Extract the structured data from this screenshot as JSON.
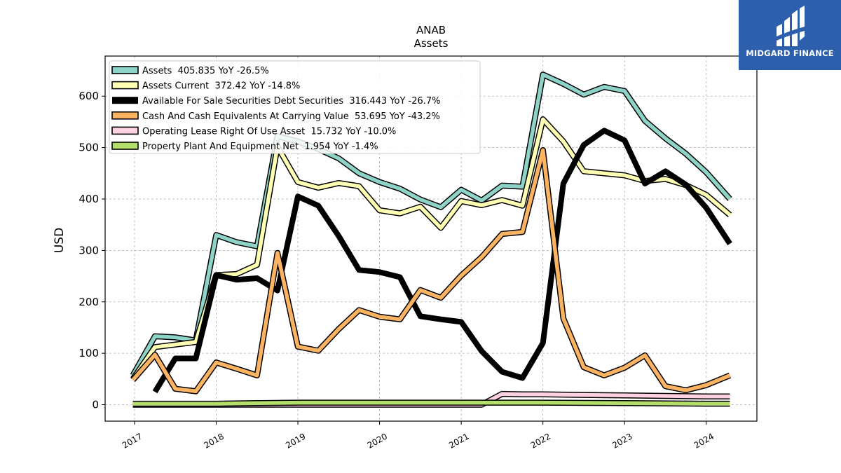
{
  "logo": {
    "text": "MIDGARD FINANCE"
  },
  "chart_data": {
    "type": "line",
    "title": "ANAB",
    "subtitle": "Assets",
    "ylabel": "USD",
    "xlabel": "",
    "ylim": [
      -32,
      678
    ],
    "xlim": [
      2016.64,
      2024.62
    ],
    "yticks": [
      0,
      100,
      200,
      300,
      400,
      500,
      600
    ],
    "xticks": [
      2017,
      2018,
      2019,
      2020,
      2021,
      2022,
      2023,
      2024
    ],
    "grid": true,
    "legend_position": "top-left",
    "series": [
      {
        "name": "Assets  405.835 YoY -26.5%",
        "color": "#8dd3c7",
        "style": "band",
        "values": [
          [
            2016.98,
            57
          ],
          [
            2017.25,
            133
          ],
          [
            2017.5,
            131
          ],
          [
            2017.75,
            125
          ],
          [
            2018.0,
            330
          ],
          [
            2018.25,
            316
          ],
          [
            2018.5,
            308
          ],
          [
            2018.75,
            522
          ],
          [
            2019.0,
            512
          ],
          [
            2019.25,
            497
          ],
          [
            2019.5,
            479
          ],
          [
            2019.75,
            450
          ],
          [
            2020.0,
            433
          ],
          [
            2020.25,
            420
          ],
          [
            2020.5,
            399
          ],
          [
            2020.75,
            384
          ],
          [
            2021.0,
            418
          ],
          [
            2021.25,
            397
          ],
          [
            2021.5,
            426
          ],
          [
            2021.75,
            424
          ],
          [
            2022.0,
            642
          ],
          [
            2022.25,
            624
          ],
          [
            2022.5,
            603
          ],
          [
            2022.75,
            618
          ],
          [
            2023.0,
            610
          ],
          [
            2023.25,
            552
          ],
          [
            2023.5,
            518
          ],
          [
            2023.75,
            488
          ],
          [
            2024.0,
            452
          ],
          [
            2024.29,
            400
          ]
        ]
      },
      {
        "name": "Assets Current  372.42 YoY -14.8%",
        "color": "#ffffb3",
        "style": "band",
        "values": [
          [
            2016.98,
            50
          ],
          [
            2017.25,
            112
          ],
          [
            2017.5,
            117
          ],
          [
            2017.75,
            122
          ],
          [
            2018.0,
            252
          ],
          [
            2018.25,
            254
          ],
          [
            2018.5,
            272
          ],
          [
            2018.75,
            502
          ],
          [
            2019.0,
            433
          ],
          [
            2019.25,
            422
          ],
          [
            2019.5,
            431
          ],
          [
            2019.75,
            425
          ],
          [
            2020.0,
            378
          ],
          [
            2020.25,
            372
          ],
          [
            2020.5,
            385
          ],
          [
            2020.75,
            344
          ],
          [
            2021.0,
            396
          ],
          [
            2021.25,
            388
          ],
          [
            2021.5,
            398
          ],
          [
            2021.75,
            387
          ],
          [
            2022.0,
            555
          ],
          [
            2022.25,
            512
          ],
          [
            2022.5,
            454
          ],
          [
            2022.75,
            450
          ],
          [
            2023.0,
            446
          ],
          [
            2023.25,
            435
          ],
          [
            2023.5,
            439
          ],
          [
            2023.75,
            427
          ],
          [
            2024.0,
            408
          ],
          [
            2024.29,
            369
          ]
        ]
      },
      {
        "name": "Available For Sale Securities Debt Securities  316.443 YoY -26.7%",
        "color": "#000000",
        "style": "thick",
        "values": [
          [
            2017.25,
            25
          ],
          [
            2017.5,
            90
          ],
          [
            2017.75,
            90
          ],
          [
            2018.0,
            252
          ],
          [
            2018.25,
            243
          ],
          [
            2018.5,
            246
          ],
          [
            2018.75,
            222
          ],
          [
            2019.0,
            405
          ],
          [
            2019.25,
            387
          ],
          [
            2019.5,
            328
          ],
          [
            2019.75,
            262
          ],
          [
            2020.0,
            258
          ],
          [
            2020.25,
            248
          ],
          [
            2020.5,
            172
          ],
          [
            2020.75,
            166
          ],
          [
            2021.0,
            161
          ],
          [
            2021.25,
            104
          ],
          [
            2021.5,
            64
          ],
          [
            2021.75,
            52
          ],
          [
            2022.0,
            120
          ],
          [
            2022.25,
            430
          ],
          [
            2022.5,
            505
          ],
          [
            2022.75,
            533
          ],
          [
            2023.0,
            514
          ],
          [
            2023.25,
            430
          ],
          [
            2023.5,
            454
          ],
          [
            2023.75,
            428
          ],
          [
            2024.0,
            383
          ],
          [
            2024.29,
            313
          ]
        ]
      },
      {
        "name": "Cash And Cash Equivalents At Carrying Value  53.695 YoY -43.2%",
        "color": "#fdb462",
        "style": "band",
        "values": [
          [
            2016.98,
            48
          ],
          [
            2017.25,
            97
          ],
          [
            2017.5,
            31
          ],
          [
            2017.75,
            26
          ],
          [
            2018.0,
            82
          ],
          [
            2018.25,
            70
          ],
          [
            2018.5,
            57
          ],
          [
            2018.75,
            295
          ],
          [
            2019.0,
            113
          ],
          [
            2019.25,
            105
          ],
          [
            2019.5,
            147
          ],
          [
            2019.75,
            184
          ],
          [
            2020.0,
            171
          ],
          [
            2020.25,
            166
          ],
          [
            2020.5,
            223
          ],
          [
            2020.75,
            208
          ],
          [
            2021.0,
            251
          ],
          [
            2021.25,
            287
          ],
          [
            2021.5,
            332
          ],
          [
            2021.75,
            336
          ],
          [
            2022.0,
            495
          ],
          [
            2022.25,
            168
          ],
          [
            2022.5,
            73
          ],
          [
            2022.75,
            57
          ],
          [
            2023.0,
            72
          ],
          [
            2023.25,
            96
          ],
          [
            2023.5,
            36
          ],
          [
            2023.75,
            28
          ],
          [
            2024.0,
            38
          ],
          [
            2024.29,
            57
          ]
        ]
      },
      {
        "name": "Operating Lease Right Of Use Asset  15.732 YoY -10.0%",
        "color": "#ffd1e3",
        "style": "band",
        "values": [
          [
            2016.98,
            0
          ],
          [
            2021.25,
            0
          ],
          [
            2021.5,
            21
          ],
          [
            2021.75,
            20
          ],
          [
            2022.0,
            20
          ],
          [
            2022.5,
            19
          ],
          [
            2023.0,
            18
          ],
          [
            2023.5,
            17
          ],
          [
            2024.0,
            16
          ],
          [
            2024.29,
            16
          ]
        ]
      },
      {
        "name": "Property Plant And Equipment Net  1.954 YoY -1.4%",
        "color": "#b3de69",
        "style": "band",
        "values": [
          [
            2016.98,
            2
          ],
          [
            2018.0,
            2
          ],
          [
            2018.5,
            3
          ],
          [
            2019.0,
            4
          ],
          [
            2020.0,
            4
          ],
          [
            2021.0,
            4
          ],
          [
            2021.5,
            4
          ],
          [
            2022.0,
            4
          ],
          [
            2023.0,
            3
          ],
          [
            2024.0,
            2
          ],
          [
            2024.29,
            2
          ]
        ]
      }
    ]
  }
}
